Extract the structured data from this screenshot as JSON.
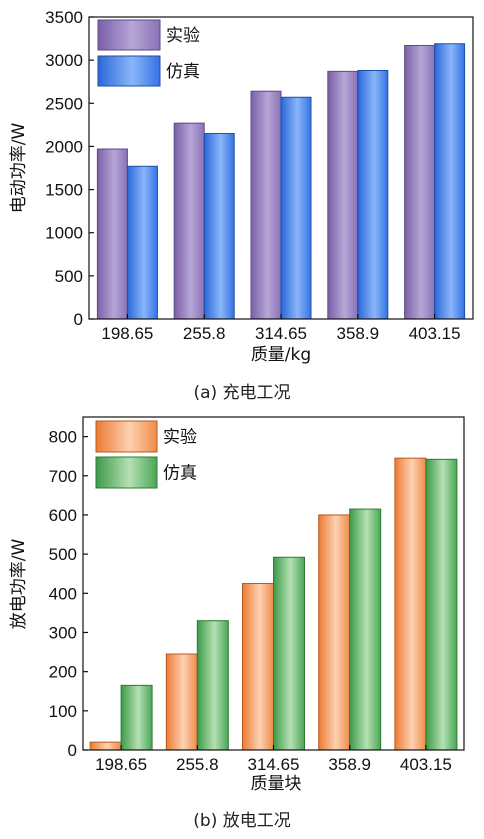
{
  "chart_data": [
    {
      "type": "bar",
      "caption": "(a) 充电工况",
      "xlabel": "质量/kg",
      "ylabel": "电动功率/W",
      "categories": [
        "198.65",
        "255.8",
        "314.65",
        "358.9",
        "403.15"
      ],
      "ylim": [
        0,
        3500
      ],
      "yticks": [
        0,
        500,
        1000,
        1500,
        2000,
        2500,
        3000,
        3500
      ],
      "legend_position": "top-left",
      "series": [
        {
          "name": "实验",
          "values": [
            1970,
            2270,
            2640,
            2870,
            3170
          ],
          "color": "#8c73b8"
        },
        {
          "name": "仿真",
          "values": [
            1770,
            2150,
            2570,
            2880,
            3190
          ],
          "color": "#3c7fe6"
        }
      ]
    },
    {
      "type": "bar",
      "caption": "(b) 放电工况",
      "xlabel": "质量块",
      "ylabel": "放电功率/W",
      "categories": [
        "198.65",
        "255.8",
        "314.65",
        "358.9",
        "403.15"
      ],
      "ylim": [
        0,
        850
      ],
      "yticks": [
        0,
        100,
        200,
        300,
        400,
        500,
        600,
        700,
        800
      ],
      "legend_position": "top-left",
      "series": [
        {
          "name": "实验",
          "values": [
            20,
            245,
            425,
            600,
            745
          ],
          "color": "#f08c4a"
        },
        {
          "name": "仿真",
          "values": [
            165,
            330,
            492,
            615,
            742
          ],
          "color": "#5cb064"
        }
      ]
    }
  ]
}
